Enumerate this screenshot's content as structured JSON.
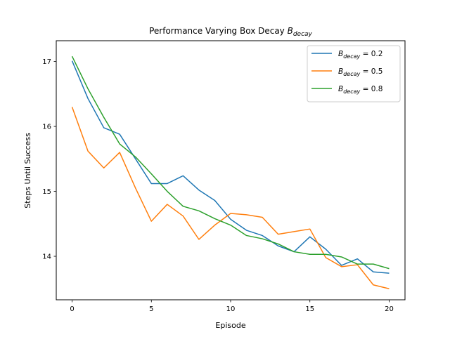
{
  "chart_data": {
    "type": "line",
    "title": {
      "prefix": "Performance Varying Box Decay ",
      "symbol": "B",
      "subscript": "decay"
    },
    "xlabel": "Episode",
    "ylabel": "Steps Until Success",
    "xlim": [
      -1,
      21
    ],
    "ylim": [
      13.33,
      17.32
    ],
    "xticks": [
      0,
      5,
      10,
      15,
      20
    ],
    "yticks": [
      14,
      15,
      16,
      17
    ],
    "grid": false,
    "legend_position": "top-right",
    "x": [
      0,
      1,
      2,
      3,
      4,
      5,
      6,
      7,
      8,
      9,
      10,
      11,
      12,
      13,
      14,
      15,
      16,
      17,
      18,
      19,
      20
    ],
    "series": [
      {
        "name": {
          "symbol": "B",
          "subscript": "decay",
          "suffix": " = 0.2"
        },
        "color": "#1f77b4",
        "values": [
          17.01,
          16.43,
          15.98,
          15.88,
          15.5,
          15.12,
          15.12,
          15.24,
          15.02,
          14.86,
          14.57,
          14.4,
          14.32,
          14.16,
          14.07,
          14.3,
          14.11,
          13.86,
          13.96,
          13.76,
          13.74
        ]
      },
      {
        "name": {
          "symbol": "B",
          "subscript": "decay",
          "suffix": " = 0.5"
        },
        "color": "#ff7f0e",
        "values": [
          16.3,
          15.62,
          15.36,
          15.6,
          15.05,
          14.54,
          14.8,
          14.62,
          14.26,
          14.48,
          14.66,
          14.64,
          14.6,
          14.34,
          14.38,
          14.42,
          13.98,
          13.84,
          13.87,
          13.56,
          13.5
        ]
      },
      {
        "name": {
          "symbol": "B",
          "subscript": "decay",
          "suffix": " = 0.8"
        },
        "color": "#2ca02c",
        "values": [
          17.08,
          16.58,
          16.14,
          15.73,
          15.53,
          15.27,
          15.0,
          14.77,
          14.7,
          14.58,
          14.48,
          14.32,
          14.27,
          14.19,
          14.07,
          14.03,
          14.03,
          13.99,
          13.88,
          13.88,
          13.81
        ]
      }
    ]
  }
}
